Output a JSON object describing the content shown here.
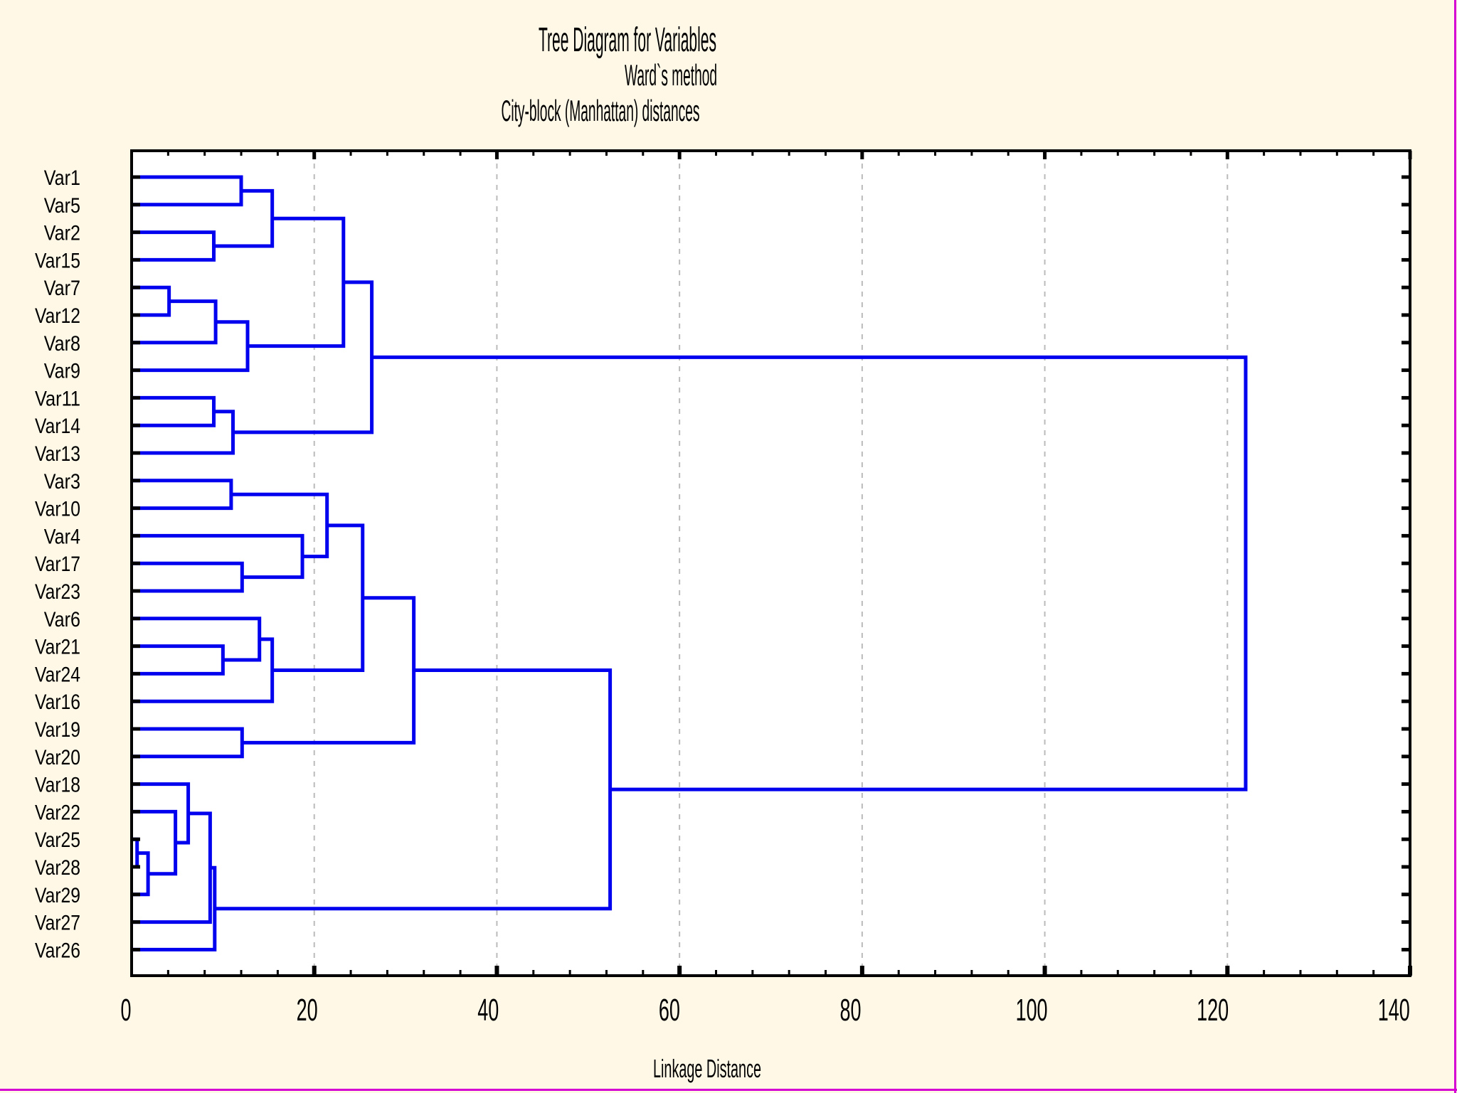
{
  "title": {
    "line1": "Tree Diagram for  Variables",
    "line2": "Ward`s method",
    "line3": "City-block (Manhattan) distances"
  },
  "x_axis": {
    "label": "Linkage Distance",
    "tick_labels": [
      "0",
      "20",
      "40",
      "60",
      "80",
      "100",
      "120",
      "140"
    ],
    "major_tick_step": 20,
    "minor_tick_step": 4,
    "range": [
      0,
      140
    ]
  },
  "colors": {
    "background": "#FFF8E7",
    "plot_background": "#FFFFFF",
    "dendrogram_line": "#0000EE",
    "frame": "#000000",
    "gridline": "#BBBBBB",
    "selection_border": "#D400D4"
  },
  "chart_data": {
    "type": "dendrogram",
    "orientation": "horizontal, leaves on left",
    "title": "Tree Diagram for  Variables",
    "method": "Ward`s method",
    "distance_metric": "City-block (Manhattan) distances",
    "xlabel": "Linkage Distance",
    "xlim": [
      0,
      140
    ],
    "grid": "dashed vertical lines at major ticks",
    "leaves": [
      "Var1",
      "Var5",
      "Var2",
      "Var15",
      "Var7",
      "Var12",
      "Var8",
      "Var9",
      "Var11",
      "Var14",
      "Var13",
      "Var3",
      "Var10",
      "Var4",
      "Var17",
      "Var23",
      "Var6",
      "Var21",
      "Var24",
      "Var16",
      "Var19",
      "Var20",
      "Var18",
      "Var22",
      "Var25",
      "Var28",
      "Var29",
      "Var27",
      "Var26"
    ],
    "merges": [
      {
        "id": "n0",
        "a": "Var1",
        "b": "Var5",
        "distance": 12.0
      },
      {
        "id": "n1",
        "a": "Var2",
        "b": "Var15",
        "distance": 9.0
      },
      {
        "id": "n2",
        "a": "n0",
        "b": "n1",
        "distance": 15.4
      },
      {
        "id": "n3",
        "a": "Var7",
        "b": "Var12",
        "distance": 4.1
      },
      {
        "id": "n4",
        "a": "n3",
        "b": "Var8",
        "distance": 9.2
      },
      {
        "id": "n5",
        "a": "n4",
        "b": "Var9",
        "distance": 12.7
      },
      {
        "id": "n6",
        "a": "n2",
        "b": "n5",
        "distance": 23.2
      },
      {
        "id": "n7",
        "a": "Var11",
        "b": "Var14",
        "distance": 9.0
      },
      {
        "id": "n8",
        "a": "n7",
        "b": "Var13",
        "distance": 11.1
      },
      {
        "id": "n9",
        "a": "n6",
        "b": "n8",
        "distance": 26.3
      },
      {
        "id": "n10",
        "a": "Var3",
        "b": "Var10",
        "distance": 10.9
      },
      {
        "id": "n11",
        "a": "Var17",
        "b": "Var23",
        "distance": 12.1
      },
      {
        "id": "n12",
        "a": "Var4",
        "b": "n11",
        "distance": 18.7
      },
      {
        "id": "n13",
        "a": "n10",
        "b": "n12",
        "distance": 21.4
      },
      {
        "id": "n14",
        "a": "Var21",
        "b": "Var24",
        "distance": 10.0
      },
      {
        "id": "n15",
        "a": "Var6",
        "b": "n14",
        "distance": 14.0
      },
      {
        "id": "n16",
        "a": "n15",
        "b": "Var16",
        "distance": 15.4
      },
      {
        "id": "n17",
        "a": "n13",
        "b": "n16",
        "distance": 25.3
      },
      {
        "id": "n18",
        "a": "Var19",
        "b": "Var20",
        "distance": 12.1
      },
      {
        "id": "n19",
        "a": "n17",
        "b": "n18",
        "distance": 30.9
      },
      {
        "id": "n20",
        "a": "Var25",
        "b": "Var28",
        "distance": 0.6
      },
      {
        "id": "n21",
        "a": "n20",
        "b": "Var29",
        "distance": 1.8
      },
      {
        "id": "n22",
        "a": "Var22",
        "b": "n21",
        "distance": 4.8
      },
      {
        "id": "n23",
        "a": "Var18",
        "b": "n22",
        "distance": 6.2
      },
      {
        "id": "n24",
        "a": "n23",
        "b": "Var27",
        "distance": 8.6
      },
      {
        "id": "n25",
        "a": "n24",
        "b": "Var26",
        "distance": 9.1
      },
      {
        "id": "n26",
        "a": "n19",
        "b": "n25",
        "distance": 52.4
      },
      {
        "id": "n27",
        "a": "n9",
        "b": "n26",
        "distance": 122.0
      }
    ]
  }
}
